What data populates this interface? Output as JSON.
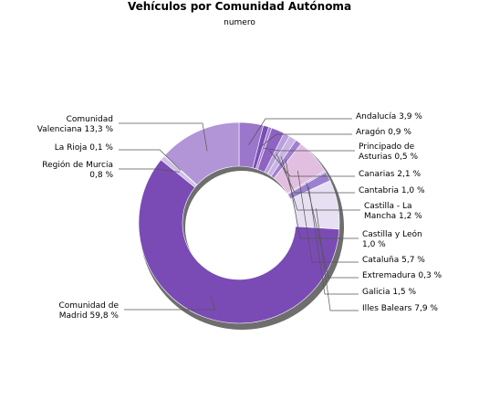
{
  "chart_data": {
    "type": "pie",
    "title": "Vehículos por Comunidad Autónoma",
    "subtitle": "numero",
    "slices": [
      {
        "name": "Andalucía",
        "value": 3.9,
        "label": [
          "Andalucía 3,9 %"
        ],
        "color": "#9b76cb"
      },
      {
        "name": "Aragón",
        "value": 0.9,
        "label": [
          "Aragón 0,9 %"
        ],
        "color": "#7a4db6"
      },
      {
        "name": "Principado de Asturias",
        "value": 0.5,
        "label": [
          "Principado de",
          "Asturias 0,5 %"
        ],
        "color": "#a782d2"
      },
      {
        "name": "Canarias",
        "value": 2.1,
        "label": [
          "Canarias 2,1 %"
        ],
        "color": "#8e63c2"
      },
      {
        "name": "Cantabria",
        "value": 1.0,
        "label": [
          "Cantabria 1,0 %"
        ],
        "color": "#b9a0dc"
      },
      {
        "name": "Castilla - La Mancha",
        "value": 1.2,
        "label": [
          "Castilla - La",
          "Mancha 1,2 %"
        ],
        "color": "#c9b4e4"
      },
      {
        "name": "Castilla y León",
        "value": 1.0,
        "label": [
          "Castilla y León",
          "1,0 %"
        ],
        "color": "#a07fd0"
      },
      {
        "name": "Cataluña",
        "value": 5.7,
        "label": [
          "Cataluña 5,7 %"
        ],
        "color": "#e2bee0"
      },
      {
        "name": "Extremadura",
        "value": 0.3,
        "label": [
          "Extremadura 0,3 %"
        ],
        "color": "#c8b8e4"
      },
      {
        "name": "Galicia",
        "value": 1.5,
        "label": [
          "Galicia 1,5 %"
        ],
        "color": "#9b7fd0"
      },
      {
        "name": "Illes Balears",
        "value": 7.9,
        "label": [
          "Illes Balears 7,9 %"
        ],
        "color": "#e6e0f2"
      },
      {
        "name": "Comunidad de Madrid",
        "value": 59.8,
        "label": [
          "Comunidad de",
          "Madrid 59,8 %"
        ],
        "color": "#7a4bb5"
      },
      {
        "name": "Región de Murcia",
        "value": 0.8,
        "label": [
          "Región de Murcia",
          "0,8 %"
        ],
        "color": "#cfc0e6"
      },
      {
        "name": "La Rioja",
        "value": 0.1,
        "label": [
          "La Rioja 0,1 %"
        ],
        "color": "#b7a2d8"
      },
      {
        "name": "Comunidad Valenciana",
        "value": 13.3,
        "label": [
          "Comunidad",
          "Valenciana 13,3 %"
        ],
        "color": "#b195d7"
      }
    ]
  }
}
